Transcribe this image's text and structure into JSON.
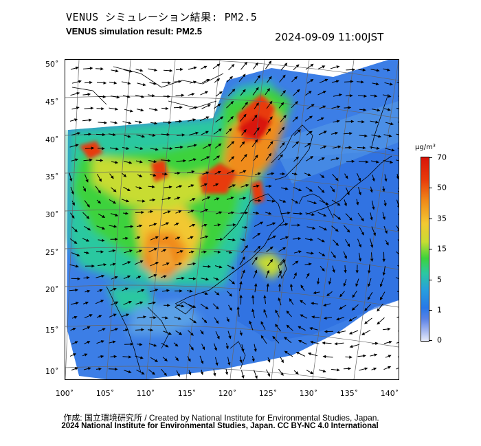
{
  "header": {
    "title_ja": "VENUS シミュレーション結果: PM2.5",
    "title_en": "VENUS simulation result: PM2.5",
    "timestamp": "2024-09-09 11:00JST"
  },
  "map": {
    "lat_labels": [
      "50˚",
      "45˚",
      "40˚",
      "35˚",
      "30˚",
      "25˚",
      "20˚",
      "15˚",
      "10˚"
    ],
    "lon_labels": [
      "100˚",
      "105˚",
      "110˚",
      "115˚",
      "120˚",
      "125˚",
      "130˚",
      "135˚",
      "140˚"
    ]
  },
  "colorbar": {
    "unit": "μg/m³",
    "labels": [
      "70",
      "50",
      "35",
      "15",
      "5",
      "1",
      "0"
    ],
    "colors": [
      "#d9140a",
      "#f08c1a",
      "#f2c832",
      "#3cd23c",
      "#28a0dc",
      "#5a82e6",
      "#e6ebfa"
    ]
  },
  "footer": {
    "credit_line": "作成: 国立環境研究所 / Created by National Institute for Environmental Studies, Japan.",
    "license_line": "2024 National Institute for Environmental Studies, Japan. CC BY-NC 4.0 International"
  }
}
